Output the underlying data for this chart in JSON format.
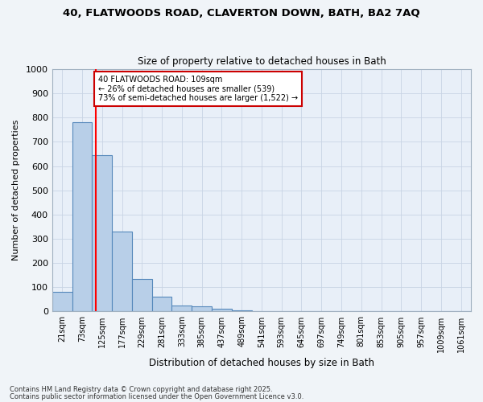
{
  "title1": "40, FLATWOODS ROAD, CLAVERTON DOWN, BATH, BA2 7AQ",
  "title2": "Size of property relative to detached houses in Bath",
  "xlabel": "Distribution of detached houses by size in Bath",
  "ylabel": "Number of detached properties",
  "categories": [
    "21sqm",
    "73sqm",
    "125sqm",
    "177sqm",
    "229sqm",
    "281sqm",
    "333sqm",
    "385sqm",
    "437sqm",
    "489sqm",
    "541sqm",
    "593sqm",
    "645sqm",
    "697sqm",
    "749sqm",
    "801sqm",
    "853sqm",
    "905sqm",
    "957sqm",
    "1009sqm",
    "1061sqm"
  ],
  "bar_values": [
    80,
    780,
    645,
    330,
    135,
    60,
    25,
    20,
    10,
    5,
    3,
    2,
    1,
    1,
    0,
    0,
    0,
    0,
    0,
    0,
    0
  ],
  "bar_color": "#b8cfe8",
  "bar_edgecolor": "#5588bb",
  "bar_linewidth": 0.8,
  "grid_color": "#c8d4e4",
  "background_color": "#e8eff8",
  "fig_background": "#f0f4f8",
  "annotation_line1": "40 FLATWOODS ROAD: 109sqm",
  "annotation_line2": "← 26% of detached houses are smaller (539)",
  "annotation_line3": "73% of semi-detached houses are larger (1,522) →",
  "annotation_box_color": "#ffffff",
  "annotation_box_edgecolor": "#cc0000",
  "ylim": [
    0,
    1000
  ],
  "yticks": [
    0,
    100,
    200,
    300,
    400,
    500,
    600,
    700,
    800,
    900,
    1000
  ],
  "footer1": "Contains HM Land Registry data © Crown copyright and database right 2025.",
  "footer2": "Contains public sector information licensed under the Open Government Licence v3.0."
}
